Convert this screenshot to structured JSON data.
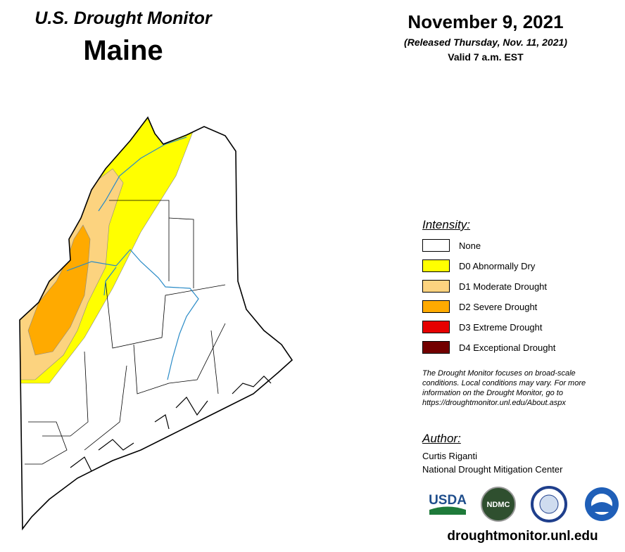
{
  "header": {
    "title": "U.S. Drought Monitor",
    "state": "Maine",
    "date": "November 9, 2021",
    "released": "(Released Thursday, Nov. 11, 2021)",
    "valid": "Valid 7 a.m. EST"
  },
  "legend": {
    "title": "Intensity:",
    "items": [
      {
        "label": "None",
        "color": "#ffffff"
      },
      {
        "label": "D0 Abnormally Dry",
        "color": "#ffff00"
      },
      {
        "label": "D1 Moderate Drought",
        "color": "#fcd37f"
      },
      {
        "label": "D2 Severe Drought",
        "color": "#ffaa00"
      },
      {
        "label": "D3 Extreme Drought",
        "color": "#e60000"
      },
      {
        "label": "D4 Exceptional Drought",
        "color": "#730000"
      }
    ]
  },
  "note": [
    "The Drought Monitor focuses on broad-scale",
    "conditions. Local conditions may vary. For more",
    "information on the Drought Monitor, go to",
    "https://droughtmonitor.unl.edu/About.aspx"
  ],
  "author": {
    "title": "Author:",
    "name": "Curtis Riganti",
    "org": "National Drought Mitigation Center"
  },
  "logos": {
    "usda": "USDA",
    "ndmc": "NDMC"
  },
  "url": "droughtmonitor.unl.edu"
}
